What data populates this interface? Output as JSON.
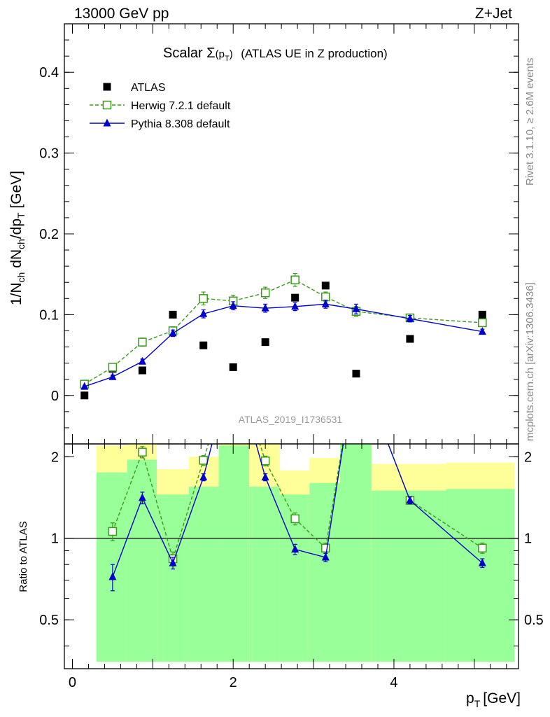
{
  "header": {
    "left": "13000 GeV pp",
    "right": "Z+Jet"
  },
  "side_labels": {
    "rivet": "Rivet 3.1.10, ≥ 2.6M events",
    "mcplots": "mcplots.cern.ch [arXiv:1306.3436]"
  },
  "chart_data": {
    "type": "scatter",
    "title_main": "Scalar Σ",
    "title_sub": "(p",
    "title_subscript": "T",
    "title_close": ")",
    "title_rest": "(ATLAS UE in Z production)",
    "analysis_id": "ATLAS_2019_I1736531",
    "xlabel": "p",
    "xlabel_sub": "T",
    "xlabel_unit": "[GeV]",
    "ylabel": "1/N_ch dN_ch/dp_T [GeV]",
    "ylabel_parts": [
      "1/N",
      "ch",
      " dN",
      "ch",
      "/dp",
      "T",
      " [GeV]"
    ],
    "ratio_ylabel": "Ratio to ATLAS",
    "xlim": [
      -0.1,
      5.55
    ],
    "ylim": [
      -0.06,
      0.46
    ],
    "ratio_ylim": [
      0.33,
      2.23
    ],
    "x_ticks": [
      0,
      2,
      4
    ],
    "y_ticks": [
      0,
      0.1,
      0.2,
      0.3,
      0.4
    ],
    "y_tick_labels": [
      "0",
      "0.1",
      "0.2",
      "0.3",
      "0.4"
    ],
    "ratio_ticks": [
      0.5,
      1,
      2
    ],
    "ratio_tick_labels": [
      "0.5",
      "1",
      "2"
    ],
    "legend_position": "top-left",
    "bins": [
      [
        0.0,
        0.3
      ],
      [
        0.3,
        0.68
      ],
      [
        0.68,
        1.05
      ],
      [
        1.05,
        1.45
      ],
      [
        1.45,
        1.82
      ],
      [
        1.82,
        2.2
      ],
      [
        2.2,
        2.58
      ],
      [
        2.58,
        2.95
      ],
      [
        2.95,
        3.33
      ],
      [
        3.33,
        3.72
      ],
      [
        3.72,
        4.65
      ],
      [
        4.65,
        5.5
      ]
    ],
    "band_green": [
      [
        1.0,
        1.0
      ],
      [
        0.35,
        1.75
      ],
      [
        0.35,
        1.95
      ],
      [
        0.35,
        1.45
      ],
      [
        0.35,
        1.55
      ],
      [
        0.35,
        2.2
      ],
      [
        0.35,
        1.55
      ],
      [
        0.35,
        1.45
      ],
      [
        0.35,
        1.6
      ],
      [
        0.35,
        2.3
      ],
      [
        0.35,
        1.5
      ],
      [
        0.35,
        1.52
      ]
    ],
    "band_yellow": [
      [
        1.0,
        1.0
      ],
      [
        0.35,
        2.2
      ],
      [
        0.35,
        2.3
      ],
      [
        0.35,
        1.8
      ],
      [
        0.35,
        2.0
      ],
      [
        0.35,
        2.3
      ],
      [
        0.35,
        2.3
      ],
      [
        0.35,
        1.78
      ],
      [
        0.35,
        1.98
      ],
      [
        0.35,
        2.3
      ],
      [
        0.35,
        1.88
      ],
      [
        0.35,
        1.9
      ]
    ],
    "series": [
      {
        "name": "ATLAS",
        "color": "#000000",
        "marker": "square-filled",
        "x": [
          0.15,
          0.5,
          0.87,
          1.25,
          1.63,
          2.0,
          2.4,
          2.77,
          3.15,
          3.53,
          4.2,
          5.1
        ],
        "y": [
          0.0,
          0.033,
          0.031,
          0.1,
          0.062,
          0.035,
          0.066,
          0.121,
          0.136,
          0.027,
          0.07,
          0.1
        ]
      },
      {
        "name": "Herwig 7.2.1 default",
        "color": "#3a9a1a",
        "marker": "square-open",
        "x": [
          0.15,
          0.5,
          0.87,
          1.25,
          1.63,
          2.0,
          2.4,
          2.77,
          3.15,
          3.53,
          4.2,
          5.1
        ],
        "y": [
          0.014,
          0.035,
          0.066,
          0.08,
          0.12,
          0.117,
          0.127,
          0.143,
          0.122,
          0.104,
          0.096,
          0.09
        ],
        "yerr": [
          0.002,
          0.003,
          0.005,
          0.005,
          0.008,
          0.007,
          0.007,
          0.008,
          0.006,
          0.006,
          0.004,
          0.003
        ],
        "ratio_x": [
          0.5,
          0.87,
          1.25,
          1.63,
          2.4,
          2.77,
          3.15,
          4.2,
          5.1
        ],
        "ratio_y": [
          1.06,
          2.08,
          0.84,
          1.94,
          1.93,
          1.18,
          0.92,
          1.38,
          0.92
        ],
        "ratio_err": [
          0.08,
          0.1,
          0.05,
          0.08,
          0.08,
          0.06,
          0.04,
          0.04,
          0.04
        ]
      },
      {
        "name": "Pythia 8.308 default",
        "color": "#0000cc",
        "marker": "triangle-filled",
        "x": [
          0.15,
          0.5,
          0.87,
          1.25,
          1.63,
          2.0,
          2.4,
          2.77,
          3.15,
          3.53,
          4.2,
          5.1
        ],
        "y": [
          0.011,
          0.023,
          0.042,
          0.077,
          0.101,
          0.111,
          0.108,
          0.11,
          0.113,
          0.107,
          0.095,
          0.079
        ],
        "yerr": [
          0.001,
          0.002,
          0.003,
          0.004,
          0.005,
          0.005,
          0.005,
          0.005,
          0.005,
          0.006,
          0.004,
          0.003
        ],
        "ratio_x": [
          0.5,
          0.87,
          1.25,
          1.63,
          2.4,
          2.77,
          3.15,
          4.2,
          5.1
        ],
        "ratio_y": [
          0.72,
          1.41,
          0.81,
          1.68,
          1.68,
          0.91,
          0.85,
          1.38,
          0.81
        ],
        "ratio_err": [
          0.08,
          0.07,
          0.04,
          0.05,
          0.05,
          0.04,
          0.03,
          0.04,
          0.03
        ]
      }
    ]
  }
}
